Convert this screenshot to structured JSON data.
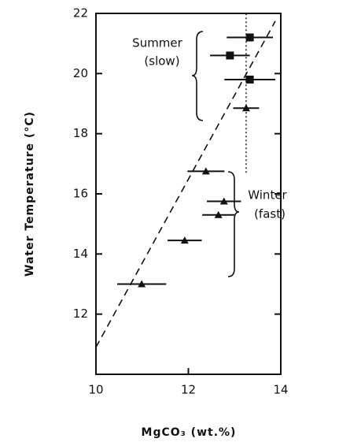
{
  "chart_data": {
    "type": "scatter",
    "xlabel": "MgCO₃ (wt.%)",
    "ylabel": "Water Temperature (°C)",
    "xlim": [
      10,
      14
    ],
    "xticks": [
      10,
      12,
      14
    ],
    "ylim": [
      10,
      22
    ],
    "yticks": [
      12,
      14,
      16,
      18,
      20,
      22
    ],
    "color": "#111111",
    "series": [
      {
        "marker": "square",
        "x": [
          13.33,
          12.9,
          13.33
        ],
        "values": [
          21.2,
          20.6,
          19.8
        ],
        "xerr": [
          0.5,
          0.43,
          0.55
        ]
      },
      {
        "marker": "triangle",
        "x": [
          13.25,
          12.38,
          12.77,
          12.65,
          11.92,
          10.99
        ],
        "values": [
          18.85,
          16.75,
          15.75,
          15.3,
          14.45,
          13.0
        ],
        "xerr": [
          0.28,
          0.4,
          0.37,
          0.35,
          0.37,
          0.53
        ]
      }
    ],
    "fit_line": {
      "x": [
        10,
        13.88
      ],
      "y": [
        10.9,
        21.74
      ]
    },
    "reference_line": {
      "x": [
        13.25,
        13.25
      ],
      "y": [
        16.7,
        22
      ]
    },
    "annotations": [
      "Summer",
      "(slow)",
      "Winter",
      "(fast)"
    ]
  }
}
